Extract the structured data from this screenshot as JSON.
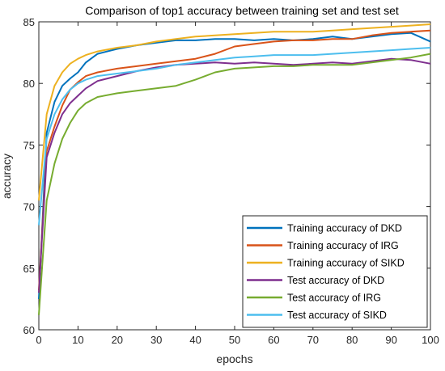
{
  "chart_data": {
    "type": "line",
    "title": "Comparison of top1 accuracy between training set and test set",
    "xlabel": "epochs",
    "ylabel": "accuracy",
    "xlim": [
      0,
      100
    ],
    "ylim": [
      60,
      85
    ],
    "xticks": [
      "0",
      "10",
      "20",
      "30",
      "40",
      "50",
      "60",
      "70",
      "80",
      "90",
      "100"
    ],
    "yticks": [
      "60",
      "65",
      "70",
      "75",
      "80",
      "85"
    ],
    "grid": false,
    "legend_position": "bottom-right",
    "x": [
      0,
      2,
      4,
      6,
      8,
      10,
      12,
      15,
      20,
      25,
      30,
      35,
      40,
      45,
      50,
      55,
      60,
      65,
      70,
      75,
      80,
      85,
      90,
      95,
      100
    ],
    "series": [
      {
        "name": "Training accuracy of DKD",
        "color": "#0072BD",
        "values": [
          62.5,
          76.0,
          78.5,
          79.8,
          80.4,
          80.9,
          81.7,
          82.4,
          82.8,
          83.1,
          83.3,
          83.5,
          83.5,
          83.6,
          83.6,
          83.5,
          83.6,
          83.5,
          83.6,
          83.8,
          83.6,
          83.8,
          84.0,
          84.1,
          83.4
        ]
      },
      {
        "name": "Training accuracy of IRG",
        "color": "#D95319",
        "values": [
          63.2,
          74.5,
          76.5,
          78.2,
          79.5,
          80.1,
          80.6,
          80.9,
          81.2,
          81.4,
          81.6,
          81.8,
          82.0,
          82.4,
          83.0,
          83.2,
          83.4,
          83.5,
          83.5,
          83.6,
          83.6,
          83.9,
          84.1,
          84.2,
          84.3
        ]
      },
      {
        "name": "Training accuracy of SIKD",
        "color": "#EDB120",
        "values": [
          70.5,
          77.5,
          79.8,
          80.9,
          81.6,
          82.0,
          82.3,
          82.6,
          82.9,
          83.1,
          83.4,
          83.6,
          83.8,
          83.9,
          84.0,
          84.1,
          84.2,
          84.2,
          84.2,
          84.3,
          84.4,
          84.5,
          84.6,
          84.7,
          84.8
        ]
      },
      {
        "name": "Test accuracy of DKD",
        "color": "#7E2F8E",
        "values": [
          63.0,
          74.0,
          76.0,
          77.5,
          78.4,
          79.0,
          79.6,
          80.2,
          80.6,
          81.0,
          81.3,
          81.5,
          81.6,
          81.7,
          81.6,
          81.7,
          81.6,
          81.5,
          81.6,
          81.7,
          81.6,
          81.8,
          82.0,
          81.9,
          81.6
        ]
      },
      {
        "name": "Test accuracy of IRG",
        "color": "#77AC30",
        "values": [
          61.2,
          70.5,
          73.5,
          75.5,
          76.8,
          77.8,
          78.4,
          78.9,
          79.2,
          79.4,
          79.6,
          79.8,
          80.3,
          80.9,
          81.2,
          81.3,
          81.4,
          81.4,
          81.5,
          81.5,
          81.5,
          81.7,
          81.9,
          82.1,
          82.4
        ]
      },
      {
        "name": "Test accuracy of SIKD",
        "color": "#4DBEEE",
        "values": [
          68.5,
          75.5,
          77.5,
          78.7,
          79.5,
          80.0,
          80.3,
          80.6,
          80.8,
          81.0,
          81.2,
          81.5,
          81.7,
          81.9,
          82.1,
          82.2,
          82.3,
          82.3,
          82.3,
          82.4,
          82.5,
          82.6,
          82.7,
          82.8,
          82.9
        ]
      }
    ]
  }
}
